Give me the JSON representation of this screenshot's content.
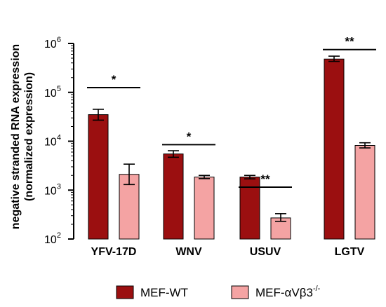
{
  "chart_data": {
    "type": "bar",
    "y_scale": "log",
    "ylim": [
      100,
      1000000
    ],
    "ylabel_line1": "negative stranded RNA expression",
    "ylabel_line2": "(normalized expression)",
    "y_ticks": [
      {
        "value": 100,
        "base": "10",
        "exp": "2"
      },
      {
        "value": 1000,
        "base": "10",
        "exp": "3"
      },
      {
        "value": 10000,
        "base": "10",
        "exp": "4"
      },
      {
        "value": 100000,
        "base": "10",
        "exp": "5"
      },
      {
        "value": 1000000,
        "base": "10",
        "exp": "6"
      }
    ],
    "categories": [
      "YFV-17D",
      "WNV",
      "USUV",
      "LGTV"
    ],
    "series": [
      {
        "name": "MEF-WT",
        "legend_base": "MEF-WT",
        "legend_sup": "",
        "color": "#9b0f10",
        "values": [
          35000,
          5500,
          1850,
          480000
        ],
        "err_low": [
          27000,
          4700,
          1700,
          430000
        ],
        "err_high": [
          45000,
          6400,
          2000,
          550000
        ]
      },
      {
        "name": "MEF-αVβ3-/-",
        "legend_base": "MEF-αVβ3",
        "legend_sup": "-/-",
        "color": "#f4a3a3",
        "values": [
          2100,
          1850,
          270,
          8200
        ],
        "err_low": [
          1300,
          1720,
          230,
          7300
        ],
        "err_high": [
          3400,
          2000,
          330,
          9300
        ]
      }
    ],
    "significance": [
      {
        "label": "*",
        "y": 125000
      },
      {
        "label": "*",
        "y": 8500
      },
      {
        "label": "**",
        "y": 1150
      },
      {
        "label": "**",
        "y": 750000
      }
    ],
    "legend_position": "bottom"
  }
}
